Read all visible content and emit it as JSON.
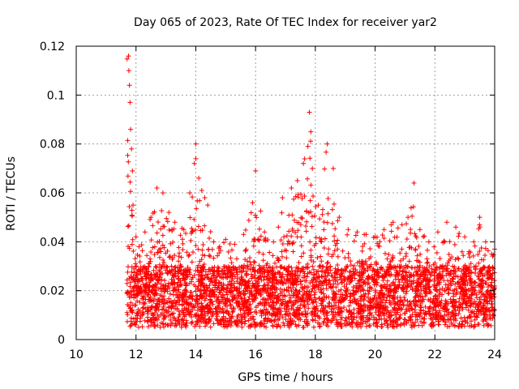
{
  "chart_data": {
    "type": "scatter",
    "title": "Day 065 of 2023, Rate Of TEC Index for receiver yar2",
    "xlabel": "GPS time / hours",
    "ylabel": "ROTI / TECUs",
    "xlim": [
      10,
      24
    ],
    "ylim": [
      0,
      0.12
    ],
    "xticks": [
      "10",
      "12",
      "14",
      "16",
      "18",
      "20",
      "22",
      "24"
    ],
    "yticks": [
      "0",
      "0.02",
      "0.04",
      "0.06",
      "0.08",
      "0.1",
      "0.12"
    ],
    "grid": true,
    "marker": "+",
    "color": "#ff0000",
    "data_start_hour": 11.7,
    "data_end_hour": 24,
    "series": [
      {
        "name": "ROTI yar2",
        "x": [
          11.75,
          11.76,
          11.78,
          11.8,
          11.82,
          11.85,
          11.88,
          11.9,
          12.0,
          12.1,
          12.3,
          12.5,
          12.7,
          12.9,
          13.1,
          13.3,
          13.6,
          13.8,
          13.95,
          14.0,
          14.1,
          14.2,
          14.3,
          14.4,
          14.6,
          14.8,
          15.0,
          15.3,
          15.6,
          15.9,
          16.0,
          16.3,
          16.6,
          16.9,
          17.2,
          17.4,
          17.6,
          17.75,
          17.8,
          17.85,
          17.9,
          18.1,
          18.4,
          18.6,
          18.8,
          19.1,
          19.4,
          19.7,
          20.0,
          20.3,
          20.6,
          20.9,
          21.1,
          21.3,
          21.5,
          21.8,
          22.1,
          22.4,
          22.7,
          23.0,
          23.3,
          23.5,
          23.7,
          23.9,
          24.0
        ],
        "y": [
          0.116,
          0.11,
          0.104,
          0.097,
          0.086,
          0.078,
          0.069,
          0.055,
          0.042,
          0.038,
          0.044,
          0.05,
          0.062,
          0.06,
          0.052,
          0.048,
          0.045,
          0.06,
          0.072,
          0.08,
          0.066,
          0.061,
          0.058,
          0.055,
          0.04,
          0.038,
          0.041,
          0.039,
          0.043,
          0.056,
          0.069,
          0.044,
          0.04,
          0.058,
          0.062,
          0.065,
          0.072,
          0.079,
          0.093,
          0.085,
          0.07,
          0.055,
          0.08,
          0.07,
          0.05,
          0.045,
          0.044,
          0.043,
          0.042,
          0.045,
          0.048,
          0.047,
          0.05,
          0.064,
          0.045,
          0.04,
          0.044,
          0.048,
          0.046,
          0.042,
          0.04,
          0.05,
          0.04,
          0.035,
          0.037
        ]
      }
    ]
  }
}
